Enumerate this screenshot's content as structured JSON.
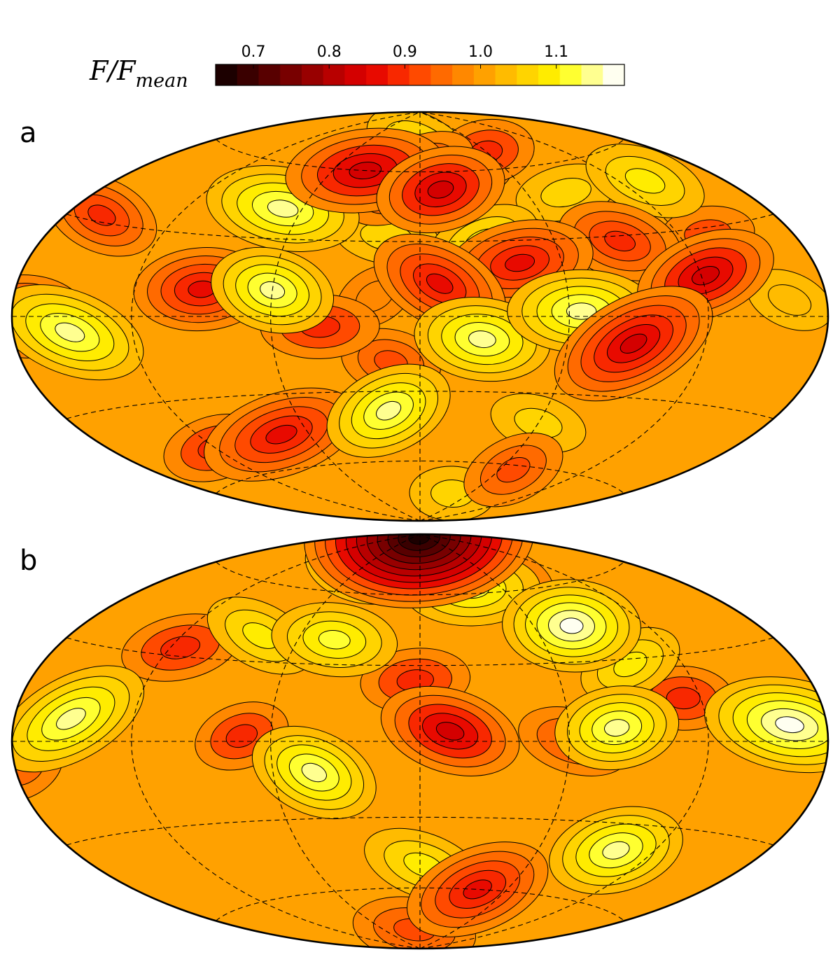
{
  "chart_data": {
    "type": "heatmap",
    "projection": "Hammer-Aitoff (all-sky, graticule shown dashed)",
    "colorbar": {
      "label_main": "F/F",
      "label_sub": "mean",
      "range": [
        0.65,
        1.19
      ],
      "ticks": [
        "0.7",
        "0.8",
        "0.9",
        "1.0",
        "1.1"
      ],
      "tick_values": [
        0.7,
        0.8,
        0.9,
        1.0,
        1.1
      ],
      "n_levels": 19,
      "colors": [
        "#1c0000",
        "#3a0000",
        "#580000",
        "#780000",
        "#980000",
        "#b80000",
        "#d40000",
        "#e80a00",
        "#f82800",
        "#ff4a00",
        "#ff6a00",
        "#ff8800",
        "#ffa100",
        "#ffbb00",
        "#ffd400",
        "#ffec00",
        "#ffff30",
        "#ffff90",
        "#fffff0"
      ]
    },
    "panels": [
      {
        "label": "a",
        "min_value": 0.83,
        "max_value": 1.16,
        "features": [
          {
            "kind": "low",
            "lon": -38,
            "lat": 60,
            "value": 0.84
          },
          {
            "kind": "low",
            "lon": -7,
            "lat": 57,
            "value": 0.88
          },
          {
            "kind": "low",
            "lon": 12,
            "lat": 52,
            "value": 0.84
          },
          {
            "kind": "low",
            "lon": 28,
            "lat": 63,
            "value": 0.9
          },
          {
            "kind": "high",
            "lon": 0,
            "lat": 72,
            "value": 1.08
          },
          {
            "kind": "high",
            "lon": 28,
            "lat": 30,
            "value": 1.1
          },
          {
            "kind": "high",
            "lon": -15,
            "lat": 32,
            "value": 1.06
          },
          {
            "kind": "high",
            "lon": -70,
            "lat": 42,
            "value": 1.14
          },
          {
            "kind": "low",
            "lon": -160,
            "lat": 32,
            "value": 0.88
          },
          {
            "kind": "low",
            "lon": -172,
            "lat": 0,
            "value": 0.86
          },
          {
            "kind": "high",
            "lon": -150,
            "lat": -5,
            "value": 1.16
          },
          {
            "kind": "low",
            "lon": -90,
            "lat": 10,
            "value": 0.86
          },
          {
            "kind": "high",
            "lon": -60,
            "lat": 10,
            "value": 1.16
          },
          {
            "kind": "low",
            "lon": -40,
            "lat": -4,
            "value": 0.9
          },
          {
            "kind": "high",
            "lon": -18,
            "lat": 8,
            "value": 0.97
          },
          {
            "kind": "low",
            "lon": -12,
            "lat": -18,
            "value": 0.91
          },
          {
            "kind": "low",
            "lon": 8,
            "lat": 13,
            "value": 0.85
          },
          {
            "kind": "low",
            "lon": 42,
            "lat": 21,
            "value": 0.86
          },
          {
            "kind": "high",
            "lon": 25,
            "lat": -9,
            "value": 1.16
          },
          {
            "kind": "high",
            "lon": 65,
            "lat": 2,
            "value": 1.16
          },
          {
            "kind": "low",
            "lon": 90,
            "lat": 28,
            "value": 0.88
          },
          {
            "kind": "low",
            "lon": 88,
            "lat": -10,
            "value": 0.83
          },
          {
            "kind": "low",
            "lon": 122,
            "lat": 14,
            "value": 0.84
          },
          {
            "kind": "high",
            "lon": 160,
            "lat": 5,
            "value": 1.04
          },
          {
            "kind": "high",
            "lon": 82,
            "lat": 48,
            "value": 1.07
          },
          {
            "kind": "high",
            "lon": 135,
            "lat": 48,
            "value": 1.08
          },
          {
            "kind": "low",
            "lon": 60,
            "lat": 68,
            "value": 0.9
          },
          {
            "kind": "low",
            "lon": 135,
            "lat": 28,
            "value": 0.93
          },
          {
            "kind": "high",
            "lon": -15,
            "lat": -38,
            "value": 1.15
          },
          {
            "kind": "low",
            "lon": -75,
            "lat": -46,
            "value": 0.86
          },
          {
            "kind": "low",
            "lon": -120,
            "lat": -48,
            "value": 0.9
          },
          {
            "kind": "high",
            "lon": -100,
            "lat": -50,
            "value": 1.07
          },
          {
            "kind": "low",
            "lon": 70,
            "lat": -62,
            "value": 0.92
          },
          {
            "kind": "high",
            "lon": 60,
            "lat": -42,
            "value": 1.05
          },
          {
            "kind": "high",
            "lon": 40,
            "lat": -75,
            "value": 1.06
          }
        ]
      },
      {
        "label": "b",
        "min_value": 0.66,
        "max_value": 1.18,
        "features": [
          {
            "kind": "low",
            "lon": -8,
            "lat": 88,
            "value": 0.66
          },
          {
            "kind": "high",
            "lon": -62,
            "lat": 72,
            "value": 1.12
          },
          {
            "kind": "high",
            "lon": 38,
            "lat": 62,
            "value": 1.13
          },
          {
            "kind": "low",
            "lon": 75,
            "lat": 65,
            "value": 0.94
          },
          {
            "kind": "high",
            "lon": 80,
            "lat": 44,
            "value": 1.18
          },
          {
            "kind": "high",
            "lon": 95,
            "lat": 28,
            "value": 1.1
          },
          {
            "kind": "high",
            "lon": 160,
            "lat": 5,
            "value": 1.17
          },
          {
            "kind": "high",
            "lon": 80,
            "lat": 5,
            "value": 1.14
          },
          {
            "kind": "low",
            "lon": 112,
            "lat": 15,
            "value": 0.9
          },
          {
            "kind": "low",
            "lon": 62,
            "lat": 0,
            "value": 0.92
          },
          {
            "kind": "low",
            "lon": 12,
            "lat": 4,
            "value": 0.84
          },
          {
            "kind": "low",
            "lon": -2,
            "lat": 24,
            "value": 0.9
          },
          {
            "kind": "high",
            "lon": -42,
            "lat": 40,
            "value": 1.12
          },
          {
            "kind": "high",
            "lon": -80,
            "lat": 40,
            "value": 1.1
          },
          {
            "kind": "low",
            "lon": -115,
            "lat": 33,
            "value": 0.9
          },
          {
            "kind": "low",
            "lon": -72,
            "lat": 2,
            "value": 0.9
          },
          {
            "kind": "high",
            "lon": -150,
            "lat": 7,
            "value": 1.16
          },
          {
            "kind": "low",
            "lon": -175,
            "lat": -8,
            "value": 0.95
          },
          {
            "kind": "high",
            "lon": -43,
            "lat": -12,
            "value": 1.16
          },
          {
            "kind": "high",
            "lon": 100,
            "lat": -40,
            "value": 1.14
          },
          {
            "kind": "low",
            "lon": 40,
            "lat": -60,
            "value": 0.86
          },
          {
            "kind": "low",
            "lon": -10,
            "lat": -80,
            "value": 0.92
          },
          {
            "kind": "high",
            "lon": 2,
            "lat": -50,
            "value": 1.1
          }
        ]
      }
    ]
  }
}
